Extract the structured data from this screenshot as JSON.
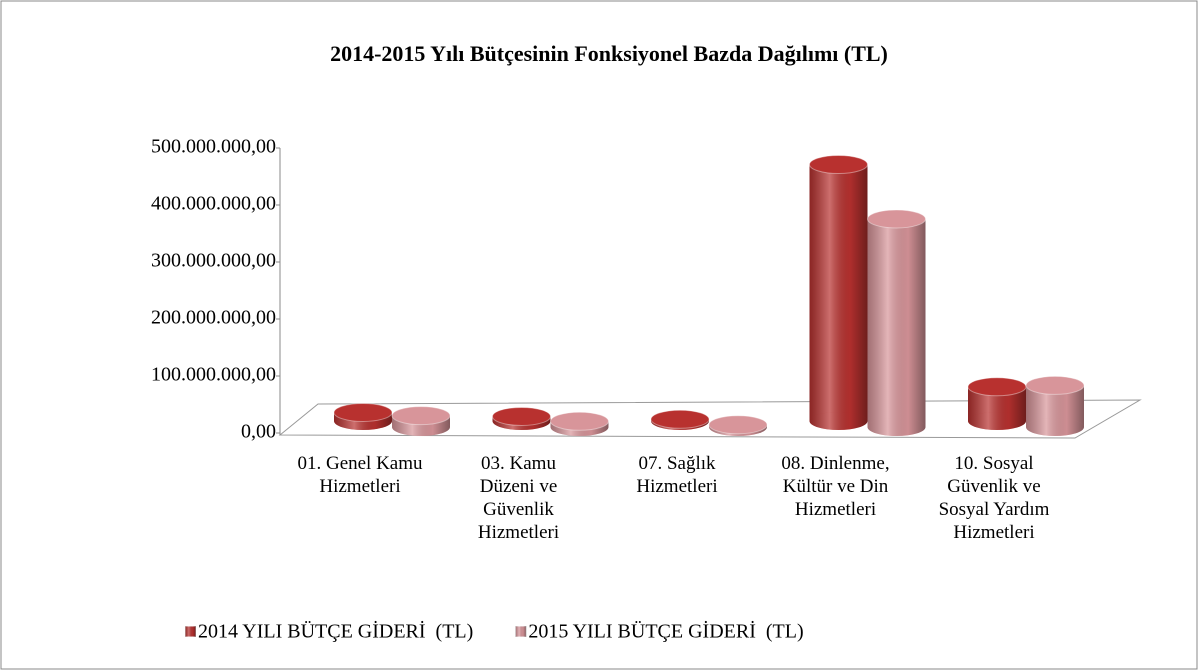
{
  "chart_data": {
    "type": "bar3d",
    "title": "2014-2015 Yılı Bütçesinin Fonksiyonel Bazda Dağılımı (TL)",
    "categories": [
      "01. Genel Kamu Hizmetleri",
      "03. Kamu Düzeni ve Güvenlik Hizmetleri",
      "07. Sağlık Hizmetleri",
      "08. Dinlenme, Kültür ve Din Hizmetleri",
      "10. Sosyal Güvenlik ve Sosyal Yardım Hizmetleri"
    ],
    "series": [
      {
        "name": "2014 YILI BÜTÇE GİDERİ  (TL)",
        "color": "#b8312f",
        "values": [
          15000000,
          8000000,
          3000000,
          450000000,
          60000000
        ]
      },
      {
        "name": "2015 YILI BÜTÇE GİDERİ  (TL)",
        "color": "#d8959a",
        "values": [
          20000000,
          10000000,
          4000000,
          365000000,
          73000000
        ]
      }
    ],
    "ylim": [
      0,
      500000000
    ],
    "yticks": [
      {
        "value": 0,
        "label": "0,00"
      },
      {
        "value": 100000000,
        "label": "100.000.000,00"
      },
      {
        "value": 200000000,
        "label": "200.000.000,00"
      },
      {
        "value": 300000000,
        "label": "300.000.000,00"
      },
      {
        "value": 400000000,
        "label": "400.000.000,00"
      },
      {
        "value": 500000000,
        "label": "500.000.000,00"
      }
    ],
    "legend": "bottom"
  }
}
